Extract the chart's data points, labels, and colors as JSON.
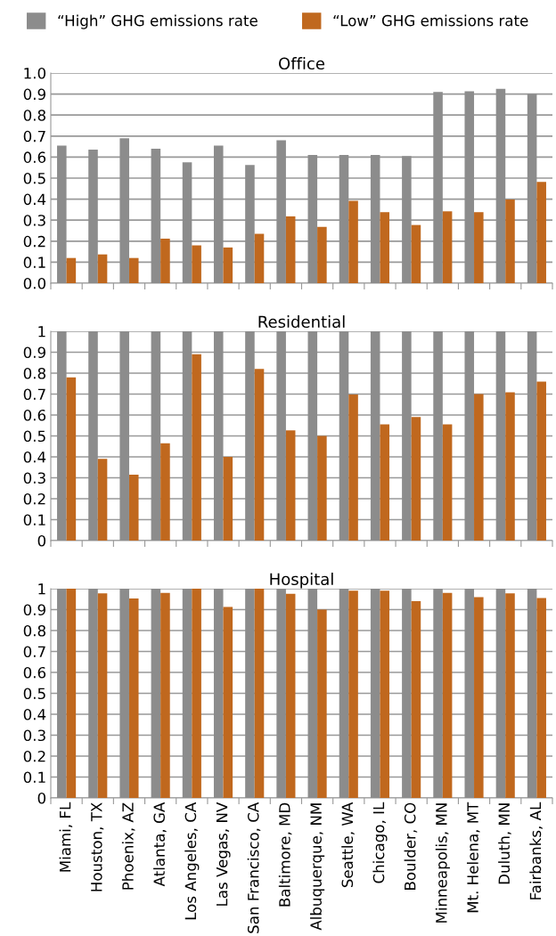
{
  "chart_data": [
    {
      "type": "bar",
      "title": "Office",
      "categories": [
        null,
        null,
        null,
        null,
        null,
        null,
        null,
        null,
        null,
        null,
        null,
        null,
        null,
        null,
        null,
        null
      ],
      "series": [
        {
          "name": "“High” GHG emissions rate",
          "color": "#8c8c8c",
          "values": [
            0.655,
            0.636,
            0.69,
            0.64,
            0.575,
            0.655,
            0.562,
            0.68,
            0.61,
            0.61,
            0.61,
            0.605,
            0.91,
            0.913,
            0.925,
            0.9
          ]
        },
        {
          "name": "“Low” GHG emissions rate",
          "color": "#c0681e",
          "values": [
            0.12,
            0.137,
            0.12,
            0.212,
            0.18,
            0.17,
            0.235,
            0.318,
            0.268,
            0.392,
            0.338,
            0.277,
            0.342,
            0.338,
            0.398,
            0.482
          ]
        }
      ],
      "ylim": [
        0,
        1
      ],
      "yticks": [
        {
          "value": 0,
          "label": "0.0"
        },
        0.1,
        0.2,
        0.3,
        0.4,
        0.5,
        0.6,
        0.7,
        0.8,
        0.9,
        {
          "value": 1,
          "label": "1.0"
        }
      ],
      "grid": "y",
      "legend": "top",
      "tick_labels": "y"
    },
    {
      "type": "bar",
      "title": "Residential",
      "categories": [
        null,
        null,
        null,
        null,
        null,
        null,
        null,
        null,
        null,
        null,
        null,
        null,
        null,
        null,
        null,
        null
      ],
      "series": [
        {
          "color": "#8c8c8c",
          "values": [
            1,
            1,
            1,
            1,
            1,
            1,
            1,
            1,
            1,
            1,
            1,
            1,
            1,
            1,
            1,
            1
          ]
        },
        {
          "color": "#c0681e",
          "values": [
            0.78,
            0.39,
            0.315,
            0.465,
            0.89,
            0.4,
            0.82,
            0.527,
            0.5,
            0.698,
            0.555,
            0.59,
            0.555,
            0.7,
            0.708,
            0.76
          ]
        }
      ],
      "ylim": [
        0,
        1
      ],
      "yticks": [
        0,
        0.1,
        0.2,
        0.3,
        0.4,
        0.5,
        0.6,
        0.7,
        0.8,
        0.9,
        1
      ],
      "grid": "y",
      "tick_labels": "y"
    },
    {
      "type": "bar",
      "title": "Hospital",
      "categories": [
        "Miami, FL",
        "Houston, TX",
        "Phoenix, AZ",
        "Atlanta, GA",
        "Los Angeles, CA",
        "Las Vegas, NV",
        "San Francisco, CA",
        "Baltimore, MD",
        "Albuquerque, NM",
        "Seattle, WA",
        "Chicago, IL",
        "Boulder, CO",
        "Minneapolis, MN",
        "Mt. Helena, MT",
        "Duluth, MN",
        "Fairbanks, AL"
      ],
      "series": [
        {
          "color": "#8c8c8c",
          "values": [
            1,
            1,
            1,
            1,
            1,
            1,
            1,
            1,
            1,
            1,
            1,
            1,
            1,
            1,
            1,
            1
          ]
        },
        {
          "color": "#c0681e",
          "values": [
            1,
            0.978,
            0.953,
            0.98,
            1,
            0.913,
            1,
            0.975,
            0.9,
            0.99,
            0.99,
            0.94,
            0.98,
            0.96,
            0.978,
            0.955
          ]
        }
      ],
      "ylim": [
        0,
        1
      ],
      "yticks": [
        0,
        0.1,
        0.2,
        0.3,
        0.4,
        0.5,
        0.6,
        0.7,
        0.8,
        0.9,
        1
      ],
      "grid": "y"
    }
  ]
}
